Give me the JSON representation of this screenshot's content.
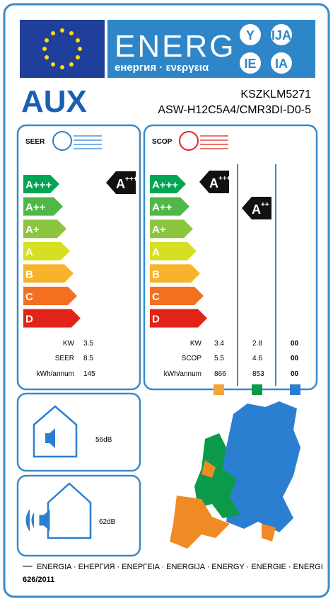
{
  "header": {
    "title": "ENERG",
    "subtitle": "енергия · ενεργεια",
    "badges": [
      "Y",
      "IJA",
      "IE",
      "IA"
    ]
  },
  "brand": "AUX",
  "model_indoor": "KSZKLM5271",
  "model_outdoor": "ASW-H12C5A4/CMR3DI-D0-5",
  "classes": [
    {
      "label": "A+++",
      "color": "#00a651"
    },
    {
      "label": "A++",
      "color": "#50b848"
    },
    {
      "label": "A+",
      "color": "#8cc63f"
    },
    {
      "label": "A",
      "color": "#d7df23"
    },
    {
      "label": "B",
      "color": "#f7b32b"
    },
    {
      "label": "C",
      "color": "#f37021"
    },
    {
      "label": "D",
      "color": "#e2231a"
    }
  ],
  "seer": {
    "title": "SEER",
    "rating": {
      "letter": "A",
      "plus": "+++"
    },
    "rows": [
      {
        "label": "KW",
        "value": "3.5"
      },
      {
        "label": "SEER",
        "value": "8.5"
      },
      {
        "label": "kWh/annum",
        "value": "145"
      }
    ]
  },
  "scop": {
    "title": "SCOP",
    "ratings": [
      {
        "letter": "A",
        "plus": "+++"
      },
      {
        "letter": "A",
        "plus": "++"
      }
    ],
    "rows": [
      {
        "label": "KW",
        "values": [
          "3.4",
          "2.8",
          "00"
        ]
      },
      {
        "label": "SCOP",
        "values": [
          "5.5",
          "4.6",
          "00"
        ]
      },
      {
        "label": "kWh/annum",
        "values": [
          "866",
          "853",
          "00"
        ]
      }
    ],
    "zone_colors": [
      "#f3a536",
      "#0a9a4a",
      "#2b7fd0"
    ]
  },
  "noise": {
    "indoor": "56dB",
    "outdoor": "62dB"
  },
  "footer": {
    "languages": "ENERGIA · ЕНЕРГИЯ · ΕΝΕΡΓΕΙΑ · ENERGIJA · ENERGY · ENERGIE · ENERGI",
    "regulation": "626/2011"
  }
}
